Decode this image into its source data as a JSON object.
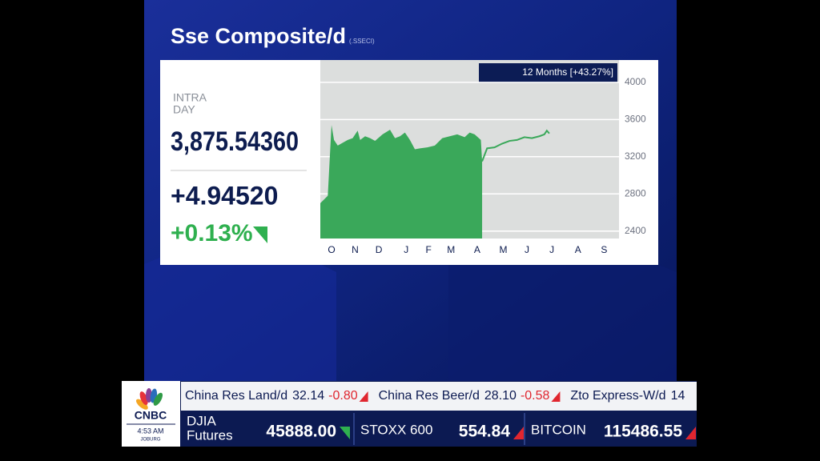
{
  "header": {
    "title": "Sse Composite/d",
    "symbol": "(.SSECI)"
  },
  "quote": {
    "label_lines": [
      "INTRA",
      "DAY"
    ],
    "price": "3,875.54360",
    "change": "+4.94520",
    "change_pct": "+0.13%"
  },
  "chart_data": {
    "type": "area",
    "badge": "12 Months [+43.27%]",
    "series": [
      {
        "color": "#3aa85a",
        "fill": true,
        "x": [
          0,
          0.3,
          0.45,
          0.55,
          0.7,
          0.9,
          1.1,
          1.3,
          1.5,
          1.6,
          1.8,
          2.0,
          2.2,
          2.5,
          2.8,
          3.0,
          3.2,
          3.4,
          3.6,
          3.8,
          4.0,
          4.3,
          4.6,
          4.9,
          5.2,
          5.5,
          5.8,
          6.0,
          6.2,
          6.45,
          6.5
        ],
        "values": [
          2700,
          2780,
          3540,
          3380,
          3320,
          3350,
          3380,
          3400,
          3480,
          3380,
          3420,
          3400,
          3370,
          3440,
          3490,
          3400,
          3420,
          3460,
          3380,
          3280,
          3290,
          3300,
          3320,
          3400,
          3420,
          3440,
          3410,
          3460,
          3440,
          3380,
          3150
        ]
      },
      {
        "color": "#3aa85a",
        "fill": false,
        "x": [
          6.5,
          6.7,
          7.0,
          7.3,
          7.6,
          7.9,
          8.2,
          8.5,
          8.8,
          9.0,
          9.1,
          9.2
        ],
        "values": [
          3150,
          3290,
          3300,
          3340,
          3370,
          3380,
          3410,
          3400,
          3420,
          3440,
          3480,
          3450
        ]
      }
    ],
    "xlim": [
      0,
      12
    ],
    "xticks": [
      {
        "value": 0.45,
        "label": "O"
      },
      {
        "value": 1.4,
        "label": "N"
      },
      {
        "value": 2.35,
        "label": "D"
      },
      {
        "value": 3.45,
        "label": "J"
      },
      {
        "value": 4.35,
        "label": "F"
      },
      {
        "value": 5.25,
        "label": "M"
      },
      {
        "value": 6.3,
        "label": "A"
      },
      {
        "value": 7.35,
        "label": "M"
      },
      {
        "value": 8.3,
        "label": "J"
      },
      {
        "value": 9.3,
        "label": "J"
      },
      {
        "value": 10.35,
        "label": "A"
      },
      {
        "value": 11.4,
        "label": "S"
      }
    ],
    "ylim": [
      2320,
      4240
    ],
    "yticks": [
      2400,
      2800,
      3200,
      3600,
      4000
    ],
    "grid": true
  },
  "ticker": {
    "top": [
      {
        "name": "China Res Land/d",
        "price": "32.14",
        "change": "-0.80"
      },
      {
        "name": "China Res Beer/d",
        "price": "28.10",
        "change": "-0.58"
      },
      {
        "name": "Zto Express-W/d",
        "price": "14"
      }
    ],
    "bottom": [
      {
        "name_lines": [
          "DJIA",
          "Futures"
        ],
        "price": "45888.00"
      },
      {
        "name_lines": [
          "STOXX 600"
        ],
        "price": "554.84"
      },
      {
        "name_lines": [
          "BITCOIN"
        ],
        "price": "115486.55"
      }
    ]
  },
  "logo": {
    "brand": "CNBC",
    "time": "4:53 AM",
    "city": "JOBURG"
  }
}
